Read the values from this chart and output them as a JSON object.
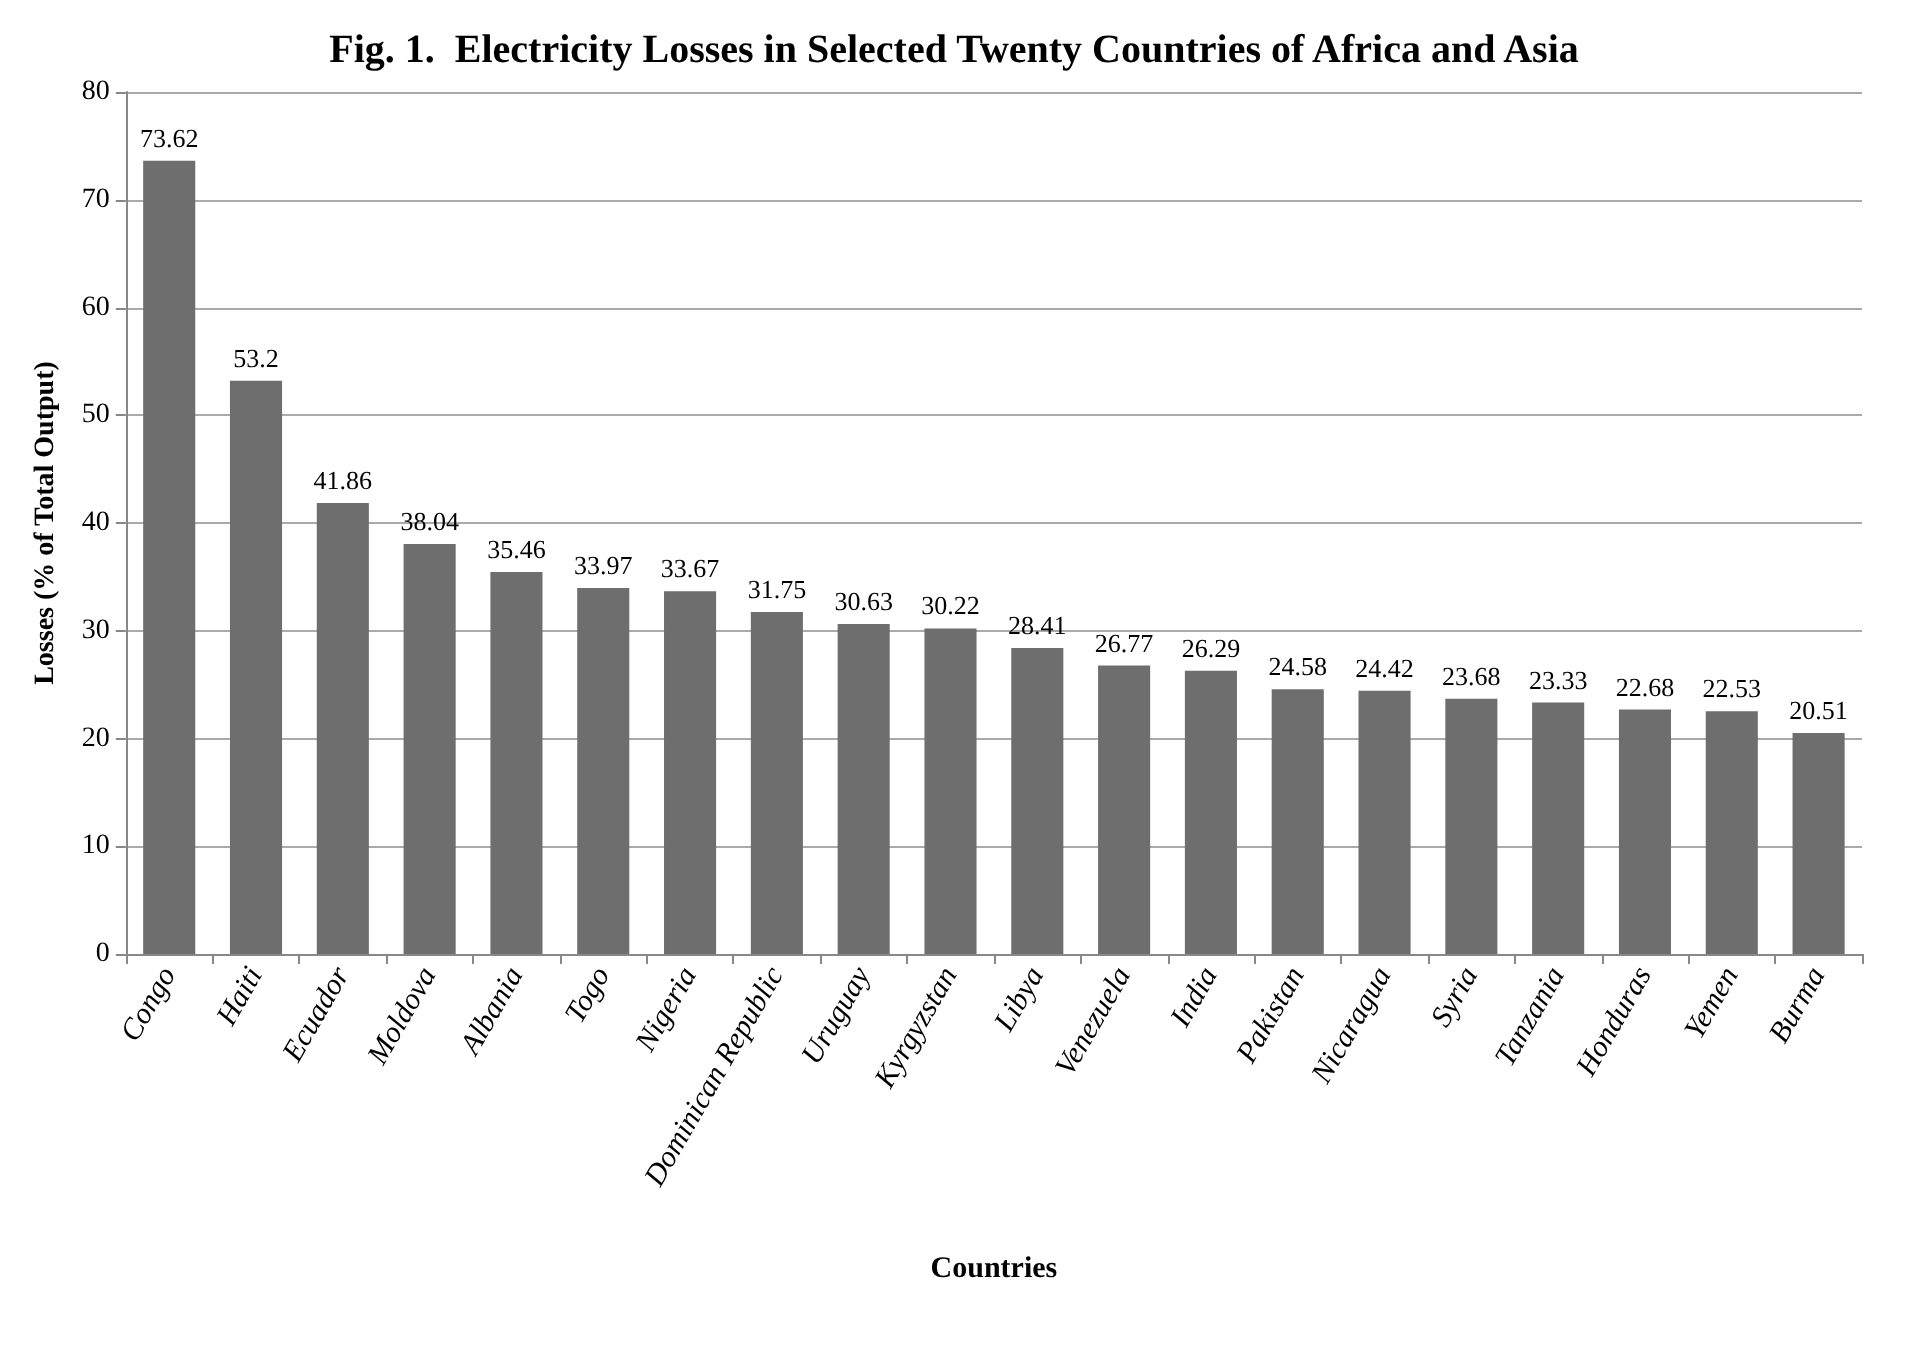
{
  "chart_data": {
    "type": "bar",
    "title": "Fig. 1.  Electricity Losses in Selected Twenty Countries of Africa and Asia",
    "xlabel": "Countries",
    "ylabel": "Losses (% of Total Output)",
    "categories": [
      "Congo",
      "Haiti",
      "Ecuador",
      "Moldova",
      "Albania",
      "Togo",
      "Nigeria",
      "Dominican Republic",
      "Uruguay",
      "Kyrgyzstan",
      "Libya",
      "Venezuela",
      "India",
      "Pakistan",
      "Nicaragua",
      "Syria",
      "Tanzania",
      "Honduras",
      "Yemen",
      "Burma"
    ],
    "values": [
      73.62,
      53.2,
      41.86,
      38.04,
      35.46,
      33.97,
      33.67,
      31.75,
      30.63,
      30.22,
      28.41,
      26.77,
      26.29,
      24.58,
      24.42,
      23.68,
      23.33,
      22.68,
      22.53,
      20.51
    ],
    "color": "#6e6e6e",
    "ylim": [
      0,
      80
    ],
    "yticks": [
      0,
      10,
      20,
      30,
      40,
      50,
      60,
      70,
      80
    ],
    "grid": "y",
    "data_labels": true
  }
}
